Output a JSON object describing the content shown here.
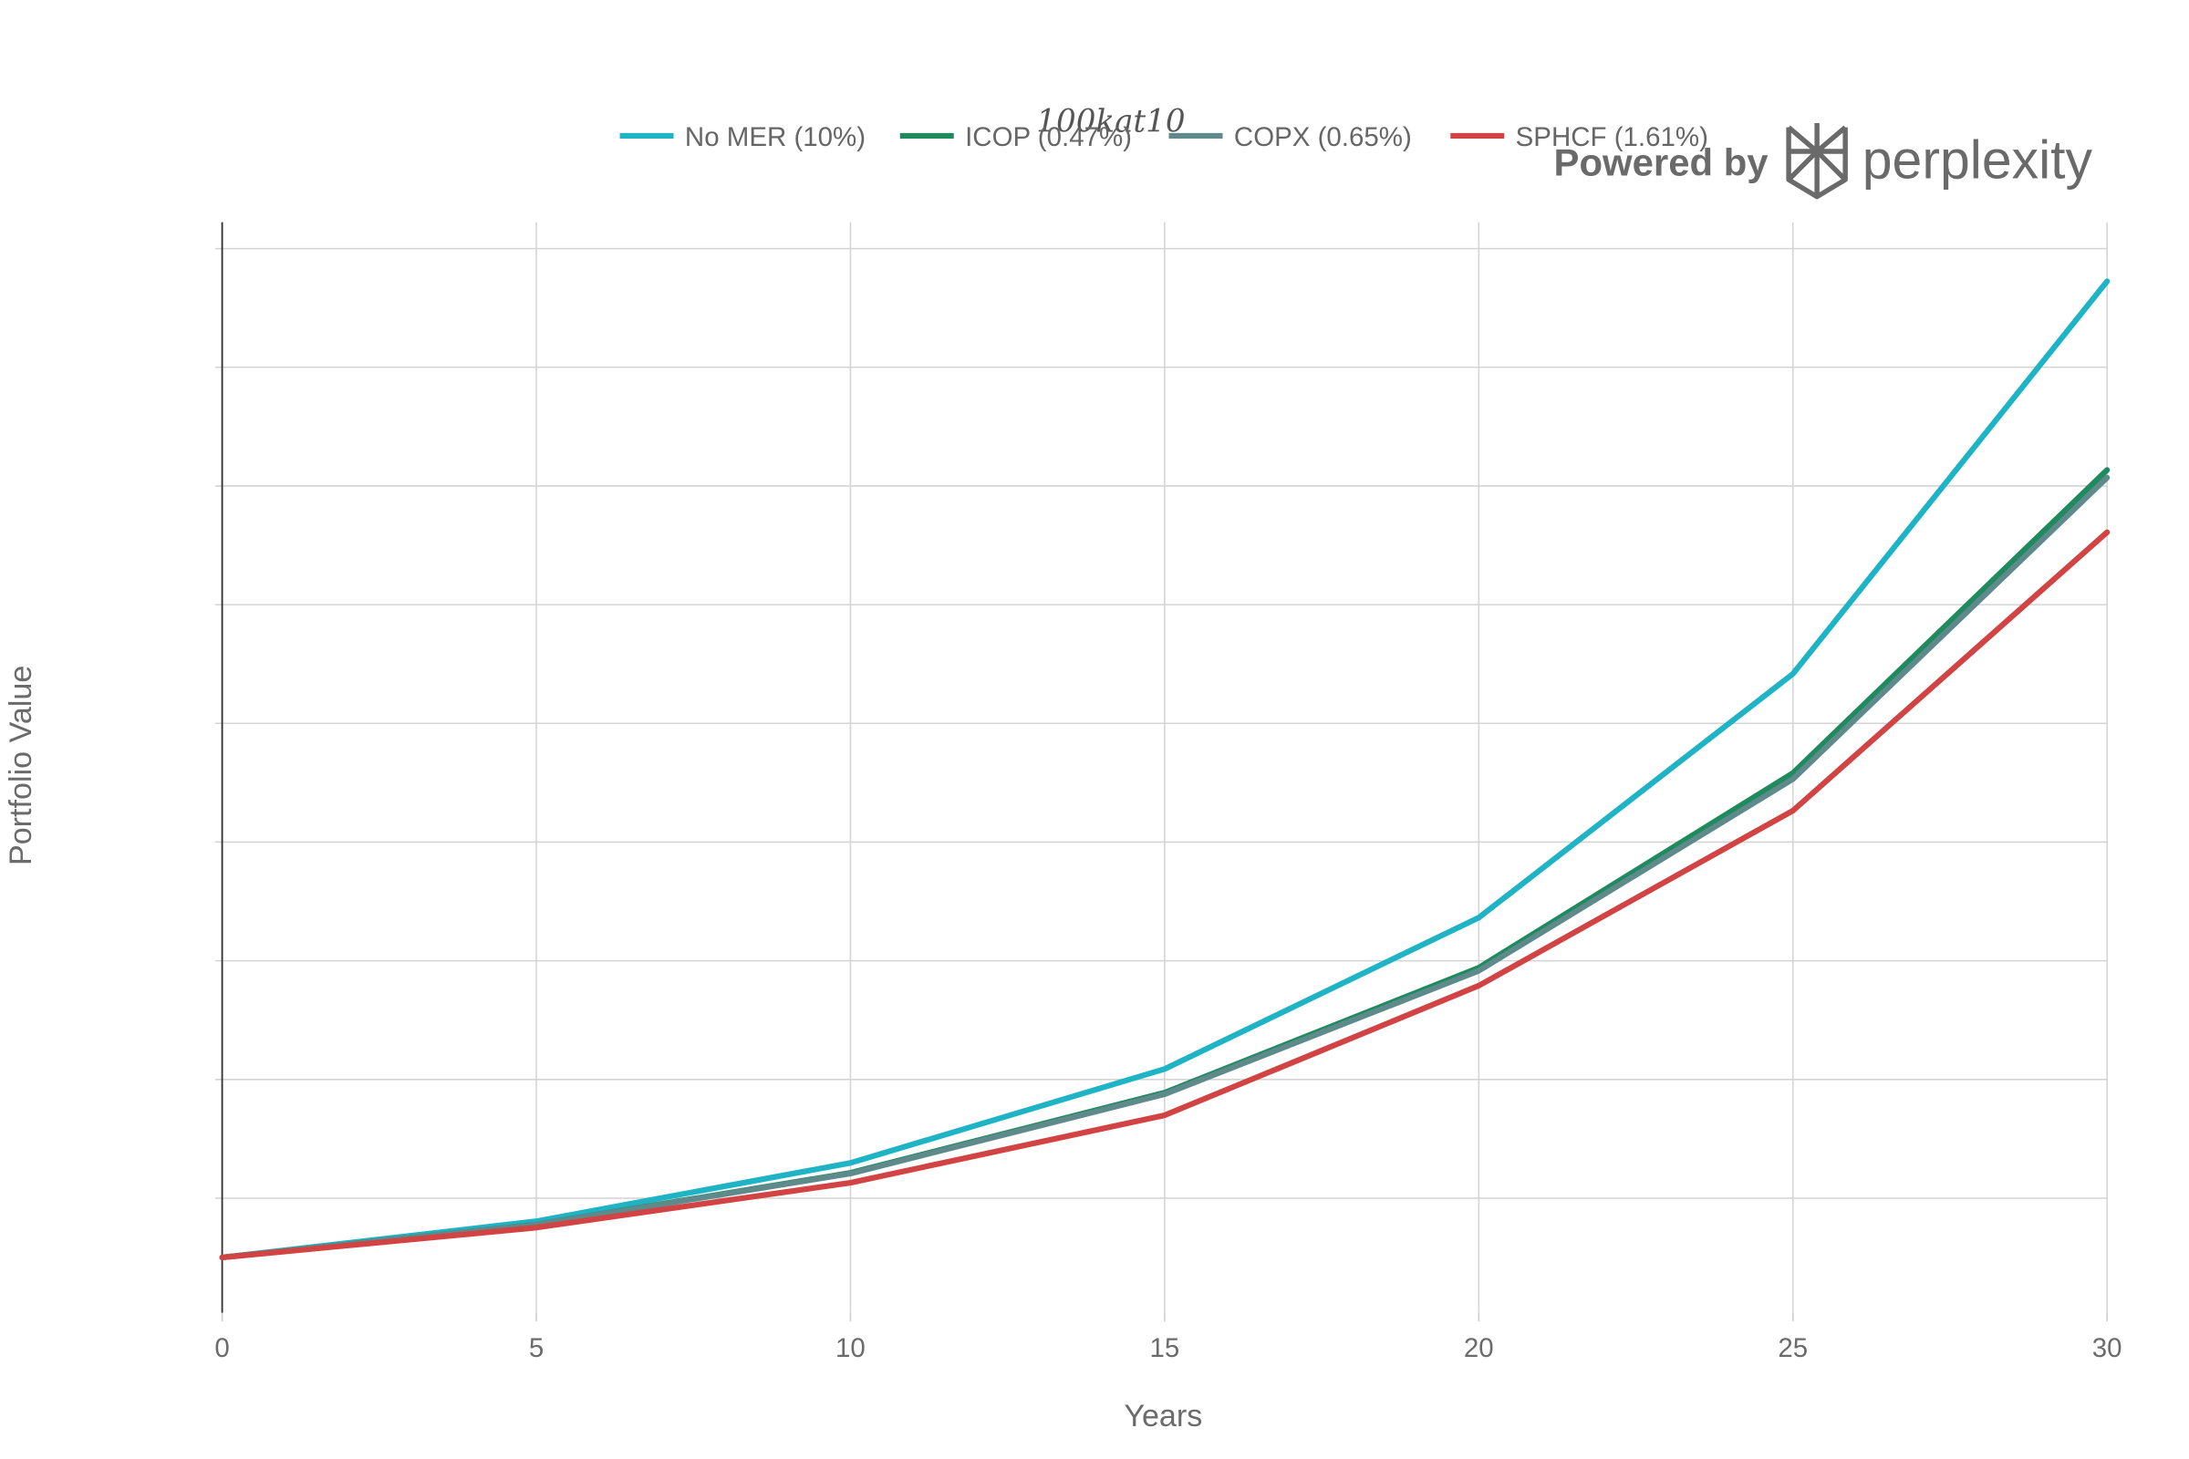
{
  "chart_data": {
    "type": "line",
    "title": "100kat10",
    "xlabel": "Years",
    "ylabel": "Portfolio Value",
    "x": [
      0,
      5,
      10,
      15,
      20,
      25,
      30
    ],
    "xlim": [
      0,
      30
    ],
    "x_ticks": [
      "0",
      "5",
      "10",
      "15",
      "20",
      "25",
      "30"
    ],
    "ylim": [
      0,
      1850000
    ],
    "y_gridlines": [
      200000,
      400000,
      600000,
      800000,
      1000000,
      1200000,
      1400000,
      1600000,
      1800000
    ],
    "y_tick_labels_shown": false,
    "grid": true,
    "legend_position": "top-center",
    "series": [
      {
        "name": "No MER (10%)",
        "color": "#1fb3c6",
        "values": [
          100000,
          161051,
          259374,
          417725,
          672750,
          1083471,
          1744940
        ]
      },
      {
        "name": "ICOP (0.47%)",
        "color": "#1e8a5e",
        "values": [
          100000,
          155740,
          242554,
          377752,
          588311,
          916233,
          1426936
        ]
      },
      {
        "name": "COPX (0.65%)",
        "color": "#5e8a8b",
        "values": [
          100000,
          155400,
          241480,
          375240,
          583100,
          906100,
          1414000
        ]
      },
      {
        "name": "SPHCF (1.61%)",
        "color": "#d24343",
        "values": [
          100000,
          150300,
          226000,
          339700,
          558000,
          853000,
          1322000
        ]
      }
    ]
  },
  "watermark": {
    "prefix": "Powered by",
    "brand": "perplexity",
    "icon": "perplexity-logo-icon"
  }
}
